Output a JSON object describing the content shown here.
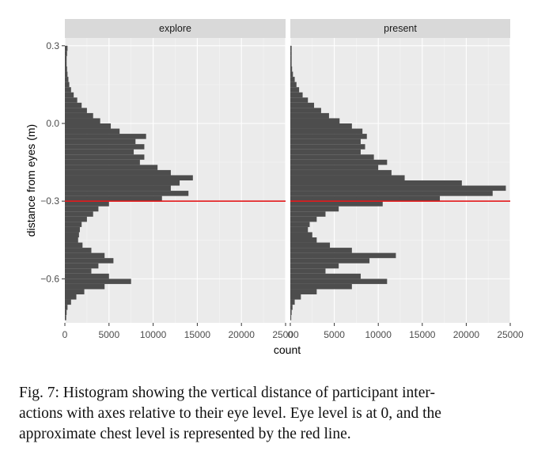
{
  "chart_data": {
    "type": "bar",
    "orientation": "horizontal",
    "xlabel": "count",
    "ylabel": "distance from eyes (m)",
    "xlim": [
      0,
      25000
    ],
    "ylim": [
      -0.77,
      0.33
    ],
    "xticks": [
      "0",
      "5000",
      "10000",
      "15000",
      "20000",
      "25000"
    ],
    "yticks": [
      "0.3",
      "0.0",
      "−0.3",
      "−0.6"
    ],
    "ytick_values": [
      0.3,
      0.0,
      -0.3,
      -0.6
    ],
    "xtick_values": [
      0,
      5000,
      10000,
      15000,
      20000,
      25000
    ],
    "reference_line": {
      "y": -0.3,
      "color": "#e31a1c"
    },
    "bin_width": 0.01,
    "grid": true,
    "panels": [
      {
        "title": "explore",
        "bins": [
          [
            0.29,
            300
          ],
          [
            0.27,
            250
          ],
          [
            0.25,
            200
          ],
          [
            0.23,
            200
          ],
          [
            0.21,
            250
          ],
          [
            0.19,
            300
          ],
          [
            0.17,
            400
          ],
          [
            0.15,
            500
          ],
          [
            0.13,
            700
          ],
          [
            0.11,
            1000
          ],
          [
            0.09,
            1400
          ],
          [
            0.07,
            1900
          ],
          [
            0.05,
            2500
          ],
          [
            0.03,
            3200
          ],
          [
            0.01,
            4000
          ],
          [
            -0.01,
            5200
          ],
          [
            -0.03,
            6200
          ],
          [
            -0.05,
            9200
          ],
          [
            -0.07,
            8000
          ],
          [
            -0.09,
            9000
          ],
          [
            -0.11,
            7800
          ],
          [
            -0.13,
            9000
          ],
          [
            -0.15,
            8500
          ],
          [
            -0.17,
            10500
          ],
          [
            -0.19,
            12000
          ],
          [
            -0.21,
            14500
          ],
          [
            -0.23,
            13000
          ],
          [
            -0.25,
            12000
          ],
          [
            -0.27,
            14000
          ],
          [
            -0.29,
            11000
          ],
          [
            -0.31,
            5000
          ],
          [
            -0.33,
            3800
          ],
          [
            -0.35,
            3200
          ],
          [
            -0.37,
            2500
          ],
          [
            -0.39,
            1900
          ],
          [
            -0.41,
            1700
          ],
          [
            -0.43,
            1600
          ],
          [
            -0.45,
            1500
          ],
          [
            -0.47,
            2000
          ],
          [
            -0.49,
            3000
          ],
          [
            -0.51,
            4500
          ],
          [
            -0.53,
            5500
          ],
          [
            -0.55,
            3800
          ],
          [
            -0.57,
            3000
          ],
          [
            -0.59,
            5000
          ],
          [
            -0.61,
            7500
          ],
          [
            -0.63,
            4500
          ],
          [
            -0.65,
            2200
          ],
          [
            -0.67,
            1300
          ],
          [
            -0.69,
            700
          ],
          [
            -0.71,
            300
          ],
          [
            -0.73,
            200
          ],
          [
            -0.75,
            150
          ]
        ]
      },
      {
        "title": "present",
        "bins": [
          [
            0.29,
            150
          ],
          [
            0.27,
            150
          ],
          [
            0.25,
            150
          ],
          [
            0.23,
            150
          ],
          [
            0.21,
            200
          ],
          [
            0.19,
            300
          ],
          [
            0.17,
            500
          ],
          [
            0.15,
            700
          ],
          [
            0.13,
            1000
          ],
          [
            0.11,
            1400
          ],
          [
            0.09,
            2000
          ],
          [
            0.07,
            2700
          ],
          [
            0.05,
            3500
          ],
          [
            0.03,
            4400
          ],
          [
            0.01,
            5600
          ],
          [
            -0.01,
            7000
          ],
          [
            -0.03,
            8200
          ],
          [
            -0.05,
            8700
          ],
          [
            -0.07,
            8000
          ],
          [
            -0.09,
            8500
          ],
          [
            -0.11,
            8000
          ],
          [
            -0.13,
            9500
          ],
          [
            -0.15,
            11000
          ],
          [
            -0.17,
            10000
          ],
          [
            -0.19,
            11500
          ],
          [
            -0.21,
            13000
          ],
          [
            -0.23,
            19500
          ],
          [
            -0.25,
            24500
          ],
          [
            -0.27,
            23000
          ],
          [
            -0.29,
            17000
          ],
          [
            -0.31,
            10500
          ],
          [
            -0.33,
            5500
          ],
          [
            -0.35,
            4000
          ],
          [
            -0.37,
            3000
          ],
          [
            -0.39,
            2200
          ],
          [
            -0.41,
            2000
          ],
          [
            -0.43,
            2500
          ],
          [
            -0.45,
            3000
          ],
          [
            -0.47,
            4500
          ],
          [
            -0.49,
            7000
          ],
          [
            -0.51,
            12000
          ],
          [
            -0.53,
            9000
          ],
          [
            -0.55,
            5500
          ],
          [
            -0.57,
            4000
          ],
          [
            -0.59,
            8000
          ],
          [
            -0.61,
            11000
          ],
          [
            -0.63,
            7000
          ],
          [
            -0.65,
            3000
          ],
          [
            -0.67,
            1200
          ],
          [
            -0.69,
            500
          ],
          [
            -0.71,
            250
          ],
          [
            -0.73,
            150
          ],
          [
            -0.75,
            100
          ]
        ]
      }
    ]
  },
  "caption": {
    "lines": [
      "Fig. 7: Histogram showing the vertical distance of participant inter-",
      "actions with axes relative to their eye level. Eye level is at 0, and the",
      "approximate chest level is represented by the red line."
    ]
  }
}
